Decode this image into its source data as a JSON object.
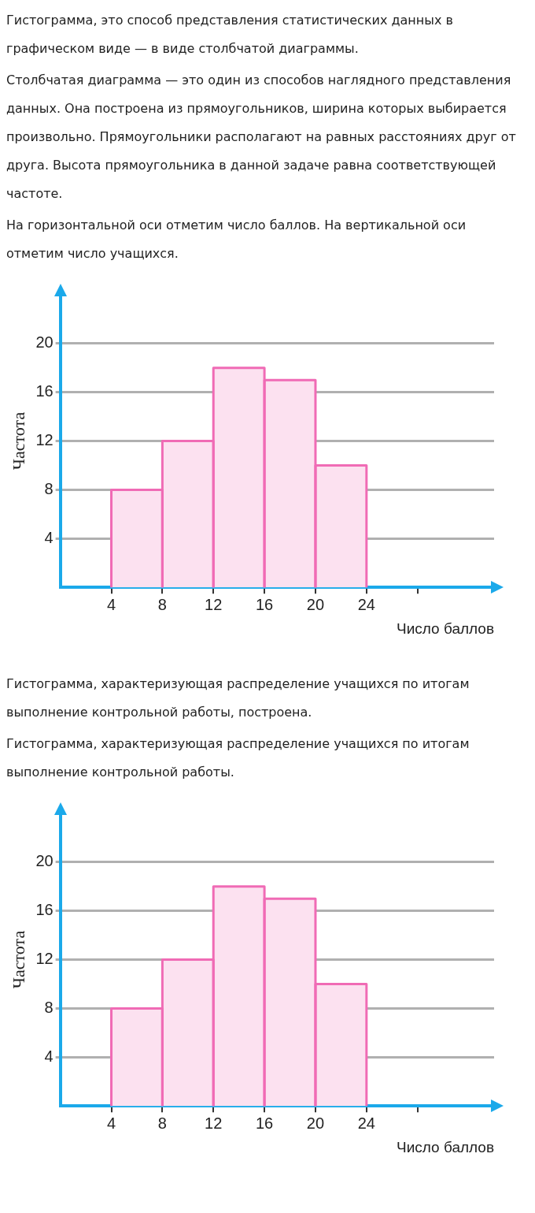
{
  "chart_data": [
    {
      "type": "histogram",
      "annotations": [
        "Гистограмма, это способ представления статистических данных в графическом виде — в виде столбчатой диаграммы.",
        "Столбчатая диаграмма — это один из способов наглядного представления данных. Она построена из прямоугольников, ширина которых выбирается произвольно. Прямоугольники располагают на равных расстояниях друг от друга. Высота прямоугольника в данной задаче равна соответствующей частоте.",
        "На горизонтальной оси отметим число баллов. На вертикальной оси отметим число учащихся."
      ],
      "xlabel": "Число баллов",
      "ylabel": "Частота",
      "bins": [
        4,
        8,
        12,
        16,
        20,
        24
      ],
      "values": [
        8,
        12,
        18,
        17,
        10
      ],
      "color": "#fce1f0",
      "xlim": [
        0,
        34
      ],
      "xticks": [
        4,
        8,
        12,
        16,
        20,
        24,
        {
          "value": 28,
          "label": null
        }
      ],
      "ylim": [
        0,
        24
      ],
      "yticks": [
        4,
        8,
        12,
        16,
        20
      ],
      "grid": "y"
    },
    {
      "type": "histogram",
      "annotations": [
        "Гистограмма, характеризующая распределение учащихся по итогам выполнение контрольной работы, построена.",
        "Гистограмма, характеризующая распределение учащихся по итогам выполнение контрольной работы."
      ],
      "xlabel": "Число баллов",
      "ylabel": "Частота",
      "bins": [
        4,
        8,
        12,
        16,
        20,
        24
      ],
      "values": [
        8,
        12,
        18,
        17,
        10
      ],
      "color": "#fce1f0",
      "xlim": [
        0,
        34
      ],
      "xticks": [
        4,
        8,
        12,
        16,
        20,
        24,
        {
          "value": 28,
          "label": null
        }
      ],
      "ylim": [
        0,
        24
      ],
      "yticks": [
        4,
        8,
        12,
        16,
        20
      ],
      "grid": "y"
    }
  ]
}
